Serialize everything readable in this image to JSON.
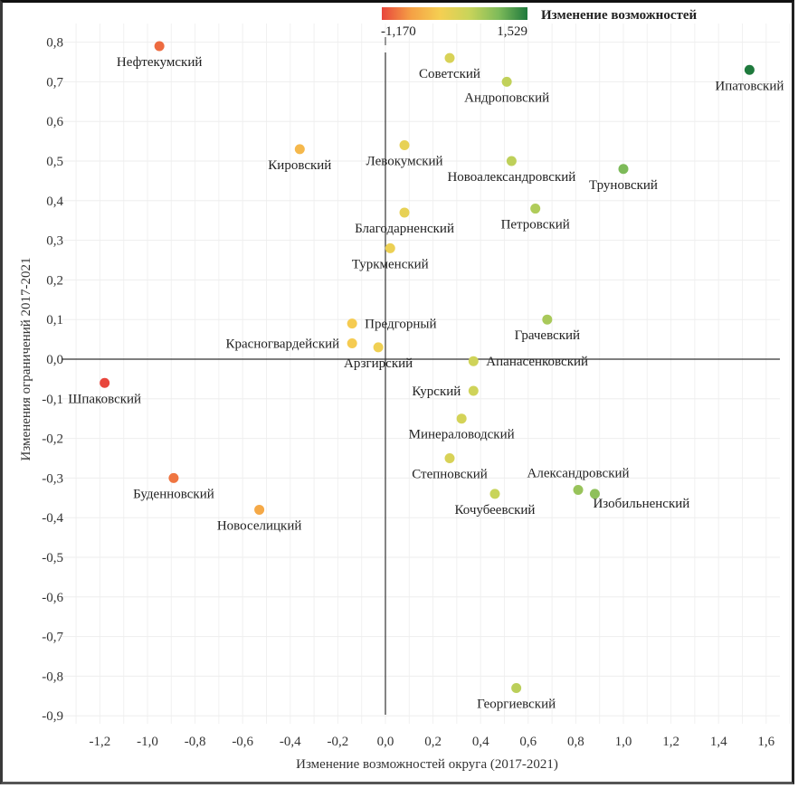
{
  "chart_data": {
    "type": "scatter",
    "title": "",
    "xlabel": "Изменение возможностей округа (2017-2021)",
    "ylabel": "Изменения ограничений 2017-2021",
    "xlim": [
      -1.32,
      1.72
    ],
    "ylim": [
      -0.96,
      0.86
    ],
    "grid": true,
    "x_ticks": [
      -1.2,
      -1.0,
      -0.8,
      -0.6,
      -0.4,
      -0.2,
      0.0,
      0.2,
      0.4,
      0.6,
      0.8,
      1.0,
      1.2,
      1.4,
      1.6
    ],
    "x_tick_labels": [
      "-1,2",
      "-1,0",
      "-0,8",
      "-0,6",
      "-0,4",
      "-0,2",
      "0,0",
      "0,2",
      "0,4",
      "0,6",
      "0,8",
      "1,0",
      "1,2",
      "1,4",
      "1,6"
    ],
    "y_ticks": [
      0.8,
      0.7,
      0.6,
      0.5,
      0.4,
      0.3,
      0.2,
      0.1,
      0.0,
      -0.1,
      -0.2,
      -0.3,
      -0.4,
      -0.5,
      -0.6,
      -0.7,
      -0.8,
      -0.9
    ],
    "y_tick_labels": [
      "0,8",
      "0,7",
      "0,6",
      "0,5",
      "0,4",
      "0,3",
      "0,2",
      "0,1",
      "0,0",
      "-0,1",
      "-0,2",
      "-0,3",
      "-0,4",
      "-0,5",
      "-0,6",
      "-0,7",
      "-0,8",
      "-0,9"
    ],
    "legend": {
      "title": "Изменение возможностей",
      "min_label": "-1,170",
      "max_label": "1,529",
      "min": -1.17,
      "max": 1.529,
      "colors": [
        "#e8463c",
        "#f5a045",
        "#f5cf52",
        "#c9d45a",
        "#7fbb5a",
        "#1f7a3d"
      ],
      "placement": "top-right"
    },
    "points": [
      {
        "name": "Нефтекумский",
        "x": -0.95,
        "y": 0.79,
        "label_pos": "below"
      },
      {
        "name": "Советский",
        "x": 0.27,
        "y": 0.76,
        "label_pos": "below"
      },
      {
        "name": "Андроповский",
        "x": 0.51,
        "y": 0.7,
        "label_pos": "below"
      },
      {
        "name": "Ипатовский",
        "x": 1.53,
        "y": 0.73,
        "label_pos": "below"
      },
      {
        "name": "Кировский",
        "x": -0.36,
        "y": 0.53,
        "label_pos": "below"
      },
      {
        "name": "Левокумский",
        "x": 0.08,
        "y": 0.54,
        "label_pos": "below"
      },
      {
        "name": "Новоалександровский",
        "x": 0.53,
        "y": 0.5,
        "label_pos": "below"
      },
      {
        "name": "Труновский",
        "x": 1.0,
        "y": 0.48,
        "label_pos": "below"
      },
      {
        "name": "Петровский",
        "x": 0.63,
        "y": 0.38,
        "label_pos": "below"
      },
      {
        "name": "Благодарненский",
        "x": 0.08,
        "y": 0.37,
        "label_pos": "below"
      },
      {
        "name": "Туркменский",
        "x": 0.02,
        "y": 0.28,
        "label_pos": "below"
      },
      {
        "name": "Предгорный",
        "x": -0.14,
        "y": 0.09,
        "label_pos": "right"
      },
      {
        "name": "Грачевский",
        "x": 0.68,
        "y": 0.1,
        "label_pos": "below"
      },
      {
        "name": "Красногвардейский",
        "x": -0.14,
        "y": 0.04,
        "label_pos": "left"
      },
      {
        "name": "Арзгирский",
        "x": -0.03,
        "y": 0.03,
        "label_pos": "below"
      },
      {
        "name": "Апанасенковский",
        "x": 0.37,
        "y": -0.005,
        "label_pos": "right"
      },
      {
        "name": "Шпаковский",
        "x": -1.18,
        "y": -0.06,
        "label_pos": "below"
      },
      {
        "name": "Курский",
        "x": 0.37,
        "y": -0.08,
        "label_pos": "left"
      },
      {
        "name": "Минераловодский",
        "x": 0.32,
        "y": -0.15,
        "label_pos": "below"
      },
      {
        "name": "Степновский",
        "x": 0.27,
        "y": -0.25,
        "label_pos": "below"
      },
      {
        "name": "Буденновский",
        "x": -0.89,
        "y": -0.3,
        "label_pos": "below"
      },
      {
        "name": "Новоселицкий",
        "x": -0.53,
        "y": -0.38,
        "label_pos": "below"
      },
      {
        "name": "Кочубеевский",
        "x": 0.46,
        "y": -0.34,
        "label_pos": "below"
      },
      {
        "name": "Александровский",
        "x": 0.81,
        "y": -0.33,
        "label_pos": "above"
      },
      {
        "name": "Изобильненский",
        "x": 0.88,
        "y": -0.34,
        "label_pos": "below-right"
      },
      {
        "name": "Георгиевский",
        "x": 0.55,
        "y": -0.83,
        "label_pos": "below"
      }
    ]
  }
}
